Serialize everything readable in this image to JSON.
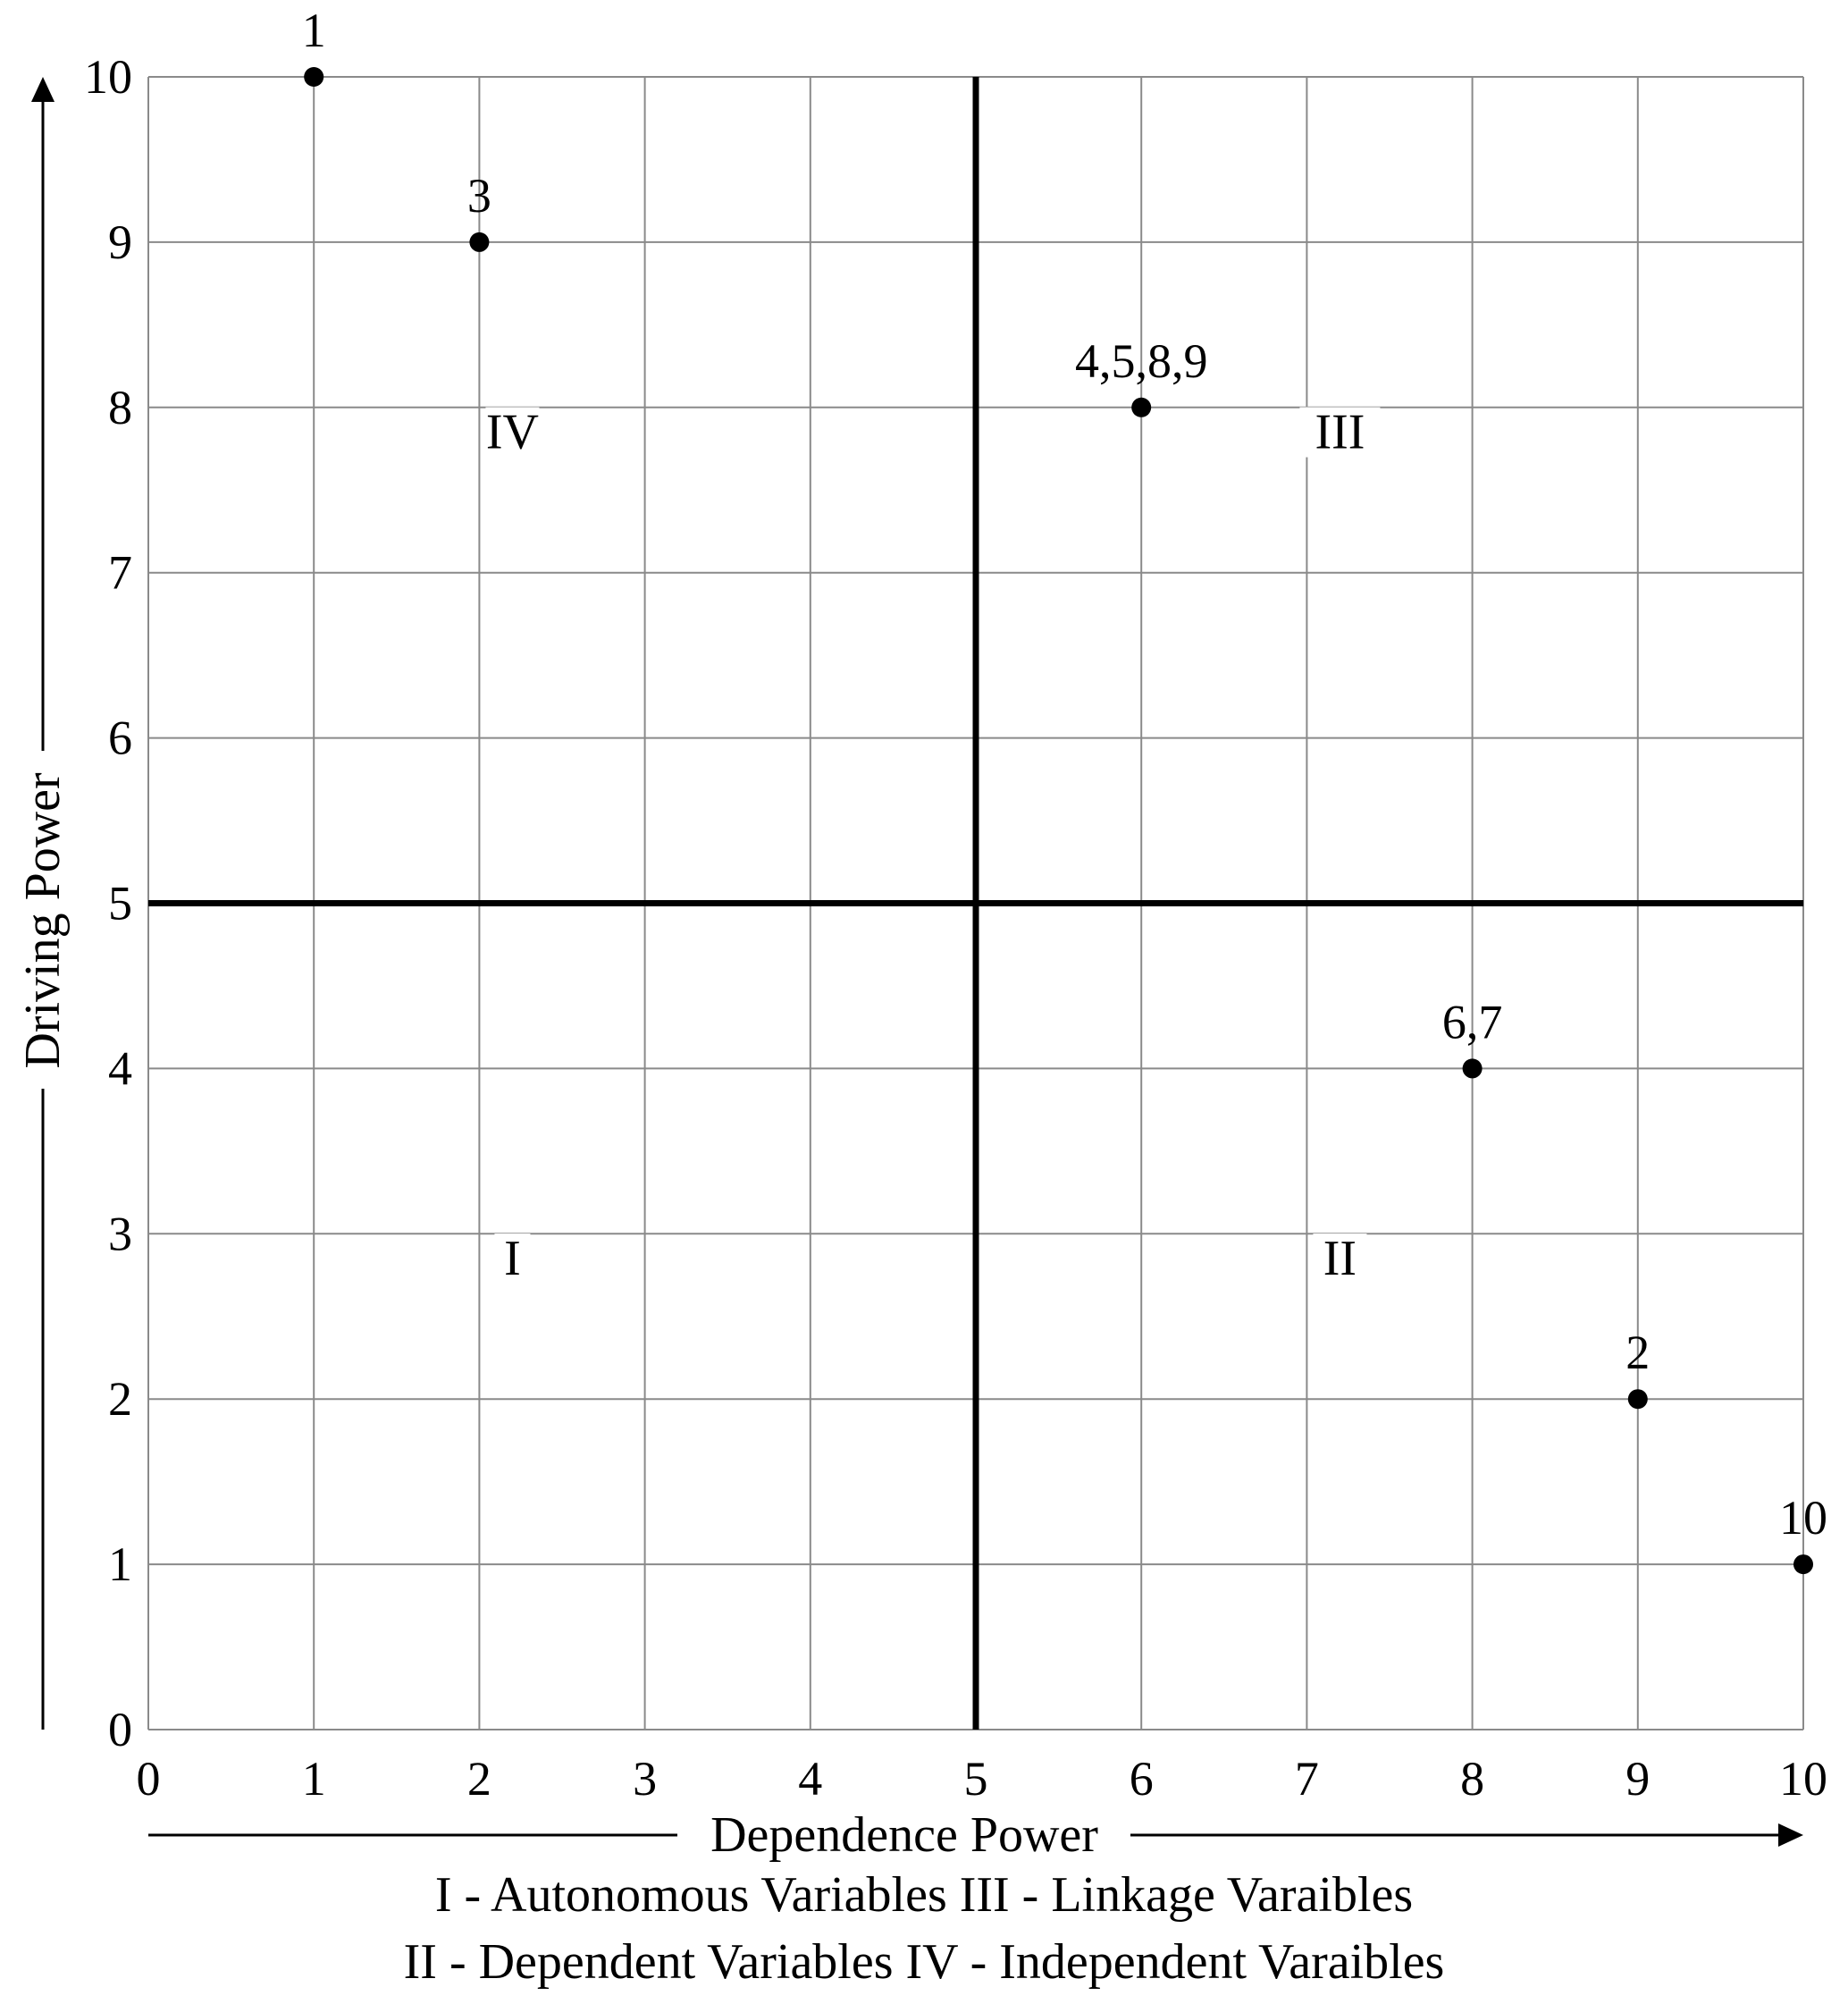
{
  "chart_data": {
    "type": "scatter",
    "xlabel": "Dependence Power",
    "ylabel": "Driving Power",
    "xlim": [
      0,
      10
    ],
    "ylim": [
      0,
      10
    ],
    "xticks": [
      "0",
      "1",
      "2",
      "3",
      "4",
      "5",
      "6",
      "7",
      "8",
      "9",
      "10"
    ],
    "yticks": [
      "0",
      "1",
      "2",
      "3",
      "4",
      "5",
      "6",
      "7",
      "8",
      "9",
      "10"
    ],
    "grid": true,
    "quadrant_divider": {
      "x": 5,
      "y": 5
    },
    "points": [
      {
        "label": "1",
        "x": 1,
        "y": 10
      },
      {
        "label": "3",
        "x": 2,
        "y": 9
      },
      {
        "label": "4,5,8,9",
        "x": 6,
        "y": 8
      },
      {
        "label": "6,7",
        "x": 8,
        "y": 4
      },
      {
        "label": "2",
        "x": 9,
        "y": 2
      },
      {
        "label": "10",
        "x": 10,
        "y": 1
      }
    ],
    "quadrants": [
      {
        "label": "IV",
        "x": 2.2,
        "y": 7.85
      },
      {
        "label": "III",
        "x": 7.2,
        "y": 7.85
      },
      {
        "label": "I",
        "x": 2.2,
        "y": 2.85
      },
      {
        "label": "II",
        "x": 7.2,
        "y": 2.85
      }
    ],
    "legend_lines": [
      "I - Autonomous Variables III - Linkage Varaibles",
      "II - Dependent Variables IV - Independent Varaibles"
    ]
  }
}
